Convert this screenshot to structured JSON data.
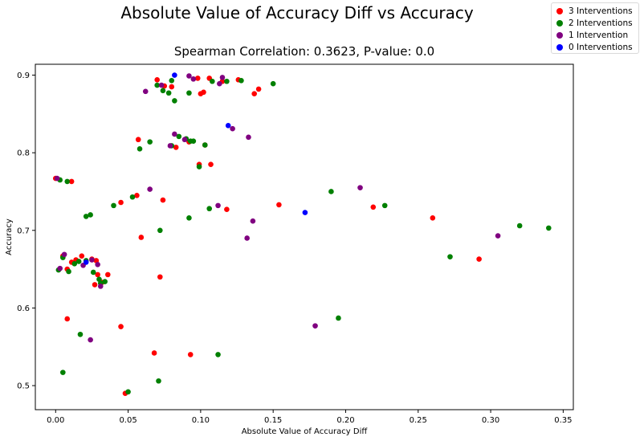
{
  "chart_data": {
    "type": "scatter",
    "title": "Absolute Value of Accuracy Diff vs Accuracy",
    "subtitle": "Spearman Correlation: 0.3623, P-value: 0.0",
    "xlabel": "Absolute Value of Accuracy Diff",
    "ylabel": "Accuracy",
    "xlim": [
      -0.014,
      0.357
    ],
    "ylim": [
      0.469,
      0.914
    ],
    "xticks": [
      0.0,
      0.05,
      0.1,
      0.15,
      0.2,
      0.25,
      0.3,
      0.35
    ],
    "xtick_labels": [
      "0.00",
      "0.05",
      "0.10",
      "0.15",
      "0.20",
      "0.25",
      "0.30",
      "0.35"
    ],
    "yticks": [
      0.5,
      0.6,
      0.7,
      0.8,
      0.9
    ],
    "ytick_labels": [
      "0.5",
      "0.6",
      "0.7",
      "0.8",
      "0.9"
    ],
    "grid": false,
    "legend_position": "top-right",
    "series": [
      {
        "name": "3 Interventions",
        "color": "#ff0000",
        "points": [
          [
            0.07,
            0.894
          ],
          [
            0.075,
            0.886
          ],
          [
            0.08,
            0.885
          ],
          [
            0.098,
            0.896
          ],
          [
            0.102,
            0.878
          ],
          [
            0.1,
            0.876
          ],
          [
            0.106,
            0.896
          ],
          [
            0.115,
            0.892
          ],
          [
            0.126,
            0.894
          ],
          [
            0.137,
            0.876
          ],
          [
            0.14,
            0.882
          ],
          [
            0.057,
            0.817
          ],
          [
            0.083,
            0.807
          ],
          [
            0.092,
            0.814
          ],
          [
            0.103,
            0.81
          ],
          [
            0.099,
            0.785
          ],
          [
            0.107,
            0.785
          ],
          [
            0.0,
            0.767
          ],
          [
            0.011,
            0.763
          ],
          [
            0.045,
            0.736
          ],
          [
            0.056,
            0.745
          ],
          [
            0.074,
            0.739
          ],
          [
            0.118,
            0.727
          ],
          [
            0.154,
            0.733
          ],
          [
            0.219,
            0.73
          ],
          [
            0.26,
            0.716
          ],
          [
            0.059,
            0.691
          ],
          [
            0.292,
            0.663
          ],
          [
            0.005,
            0.667
          ],
          [
            0.008,
            0.65
          ],
          [
            0.011,
            0.659
          ],
          [
            0.014,
            0.662
          ],
          [
            0.018,
            0.667
          ],
          [
            0.025,
            0.663
          ],
          [
            0.028,
            0.661
          ],
          [
            0.029,
            0.643
          ],
          [
            0.032,
            0.633
          ],
          [
            0.036,
            0.643
          ],
          [
            0.027,
            0.63
          ],
          [
            0.072,
            0.64
          ],
          [
            0.008,
            0.586
          ],
          [
            0.045,
            0.576
          ],
          [
            0.068,
            0.542
          ],
          [
            0.093,
            0.54
          ],
          [
            0.048,
            0.49
          ]
        ]
      },
      {
        "name": "2 Interventions",
        "color": "#008000",
        "points": [
          [
            0.07,
            0.887
          ],
          [
            0.074,
            0.88
          ],
          [
            0.078,
            0.877
          ],
          [
            0.08,
            0.893
          ],
          [
            0.082,
            0.867
          ],
          [
            0.092,
            0.877
          ],
          [
            0.108,
            0.892
          ],
          [
            0.118,
            0.892
          ],
          [
            0.128,
            0.893
          ],
          [
            0.15,
            0.889
          ],
          [
            0.058,
            0.805
          ],
          [
            0.065,
            0.814
          ],
          [
            0.08,
            0.809
          ],
          [
            0.085,
            0.821
          ],
          [
            0.09,
            0.818
          ],
          [
            0.093,
            0.815
          ],
          [
            0.095,
            0.815
          ],
          [
            0.099,
            0.782
          ],
          [
            0.103,
            0.81
          ],
          [
            0.003,
            0.765
          ],
          [
            0.008,
            0.763
          ],
          [
            0.021,
            0.718
          ],
          [
            0.024,
            0.72
          ],
          [
            0.04,
            0.732
          ],
          [
            0.053,
            0.743
          ],
          [
            0.092,
            0.716
          ],
          [
            0.106,
            0.728
          ],
          [
            0.19,
            0.75
          ],
          [
            0.227,
            0.732
          ],
          [
            0.072,
            0.7
          ],
          [
            0.272,
            0.666
          ],
          [
            0.32,
            0.706
          ],
          [
            0.34,
            0.703
          ],
          [
            0.002,
            0.649
          ],
          [
            0.005,
            0.665
          ],
          [
            0.009,
            0.647
          ],
          [
            0.013,
            0.657
          ],
          [
            0.016,
            0.66
          ],
          [
            0.021,
            0.661
          ],
          [
            0.026,
            0.646
          ],
          [
            0.03,
            0.637
          ],
          [
            0.031,
            0.632
          ],
          [
            0.034,
            0.634
          ],
          [
            0.017,
            0.566
          ],
          [
            0.195,
            0.587
          ],
          [
            0.005,
            0.517
          ],
          [
            0.05,
            0.492
          ],
          [
            0.071,
            0.506
          ],
          [
            0.112,
            0.54
          ]
        ]
      },
      {
        "name": "1 Intervention",
        "color": "#800080",
        "points": [
          [
            0.073,
            0.887
          ],
          [
            0.062,
            0.879
          ],
          [
            0.092,
            0.899
          ],
          [
            0.095,
            0.895
          ],
          [
            0.113,
            0.889
          ],
          [
            0.115,
            0.897
          ],
          [
            0.082,
            0.824
          ],
          [
            0.079,
            0.809
          ],
          [
            0.089,
            0.817
          ],
          [
            0.122,
            0.831
          ],
          [
            0.133,
            0.82
          ],
          [
            0.001,
            0.767
          ],
          [
            0.065,
            0.753
          ],
          [
            0.112,
            0.732
          ],
          [
            0.136,
            0.712
          ],
          [
            0.21,
            0.755
          ],
          [
            0.132,
            0.69
          ],
          [
            0.305,
            0.693
          ],
          [
            0.006,
            0.669
          ],
          [
            0.003,
            0.651
          ],
          [
            0.019,
            0.655
          ],
          [
            0.025,
            0.662
          ],
          [
            0.029,
            0.656
          ],
          [
            0.031,
            0.628
          ],
          [
            0.024,
            0.559
          ],
          [
            0.179,
            0.577
          ]
        ]
      },
      {
        "name": "0 Interventions",
        "color": "#0000ff",
        "points": [
          [
            0.082,
            0.9
          ],
          [
            0.119,
            0.835
          ],
          [
            0.172,
            0.723
          ],
          [
            0.021,
            0.659
          ]
        ]
      }
    ]
  }
}
